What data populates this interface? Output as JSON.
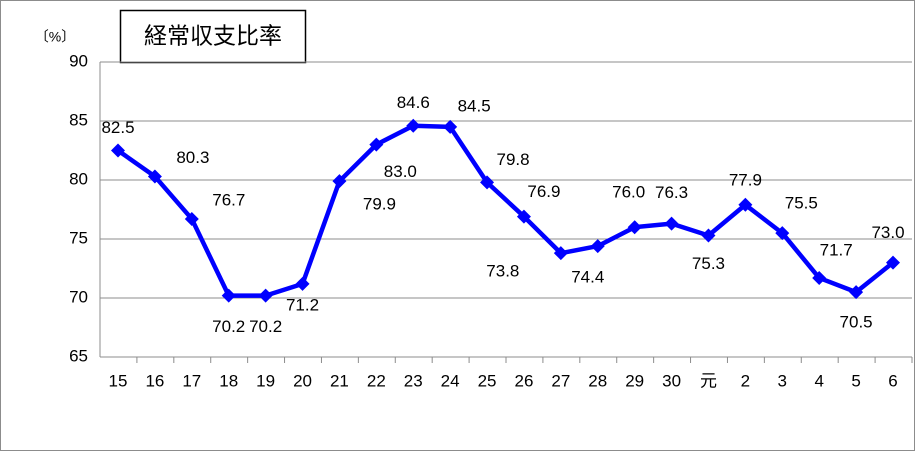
{
  "chart_data": {
    "type": "line",
    "title": "経常収支比率",
    "unit_label": "〔%〕",
    "categories": [
      "15",
      "16",
      "17",
      "18",
      "19",
      "20",
      "21",
      "22",
      "23",
      "24",
      "25",
      "26",
      "27",
      "28",
      "29",
      "30",
      "元",
      "2",
      "3",
      "4",
      "5",
      "6"
    ],
    "series": [
      {
        "color": "#0000ff",
        "values": [
          82.5,
          80.3,
          76.7,
          70.2,
          70.2,
          71.2,
          79.9,
          83.0,
          84.6,
          84.5,
          79.8,
          76.9,
          73.8,
          74.4,
          76.0,
          76.3,
          75.3,
          77.9,
          75.5,
          71.7,
          70.5,
          73.0
        ],
        "value_labels": [
          "82.5",
          "80.3",
          "76.7",
          "70.2",
          "70.2",
          "71.2",
          "79.9",
          "83.0",
          "84.6",
          "84.5",
          "79.8",
          "76.9",
          "73.8",
          "74.4",
          "76.0",
          "76.3",
          "75.3",
          "77.9",
          "75.5",
          "71.7",
          "70.5",
          "73.0"
        ]
      }
    ],
    "ylim": [
      65,
      90
    ],
    "yticks": [
      65,
      70,
      75,
      80,
      85,
      90
    ],
    "grid": true
  }
}
